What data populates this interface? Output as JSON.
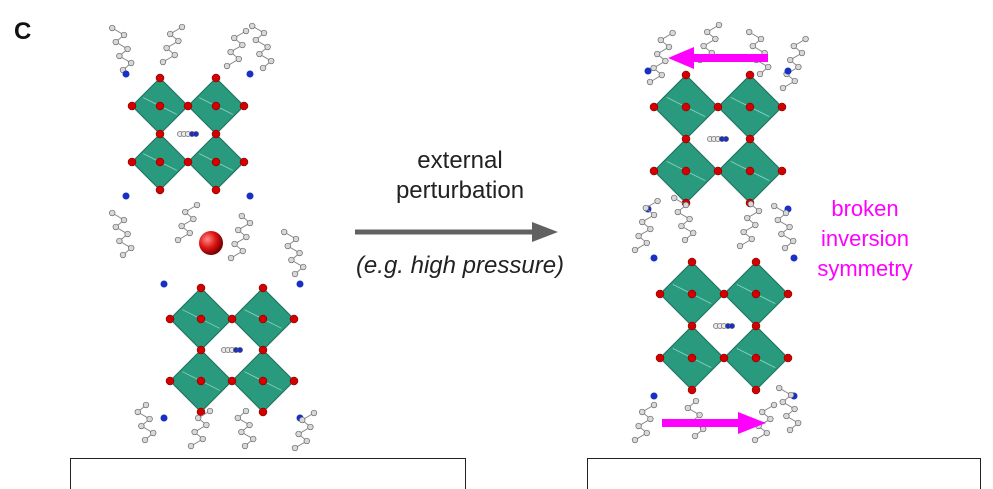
{
  "panel": {
    "letter": "C"
  },
  "arrow": {
    "label_line1": "external",
    "label_line2": "perturbation",
    "example": "(e.g. high pressure)",
    "color": "#616161"
  },
  "annotation": {
    "line1": "broken",
    "line2": "inversion",
    "line3": "symmetry",
    "color": "#ff00ff"
  },
  "colors": {
    "octahedron": "#2a9a7e",
    "octahedron_edge": "#1d6e5a",
    "oxygen_atom": "#d40000",
    "nitrogen_atom": "#1a2fc4",
    "carbon_atom": "#d8d8d8",
    "guest_atom": "#e01515"
  }
}
